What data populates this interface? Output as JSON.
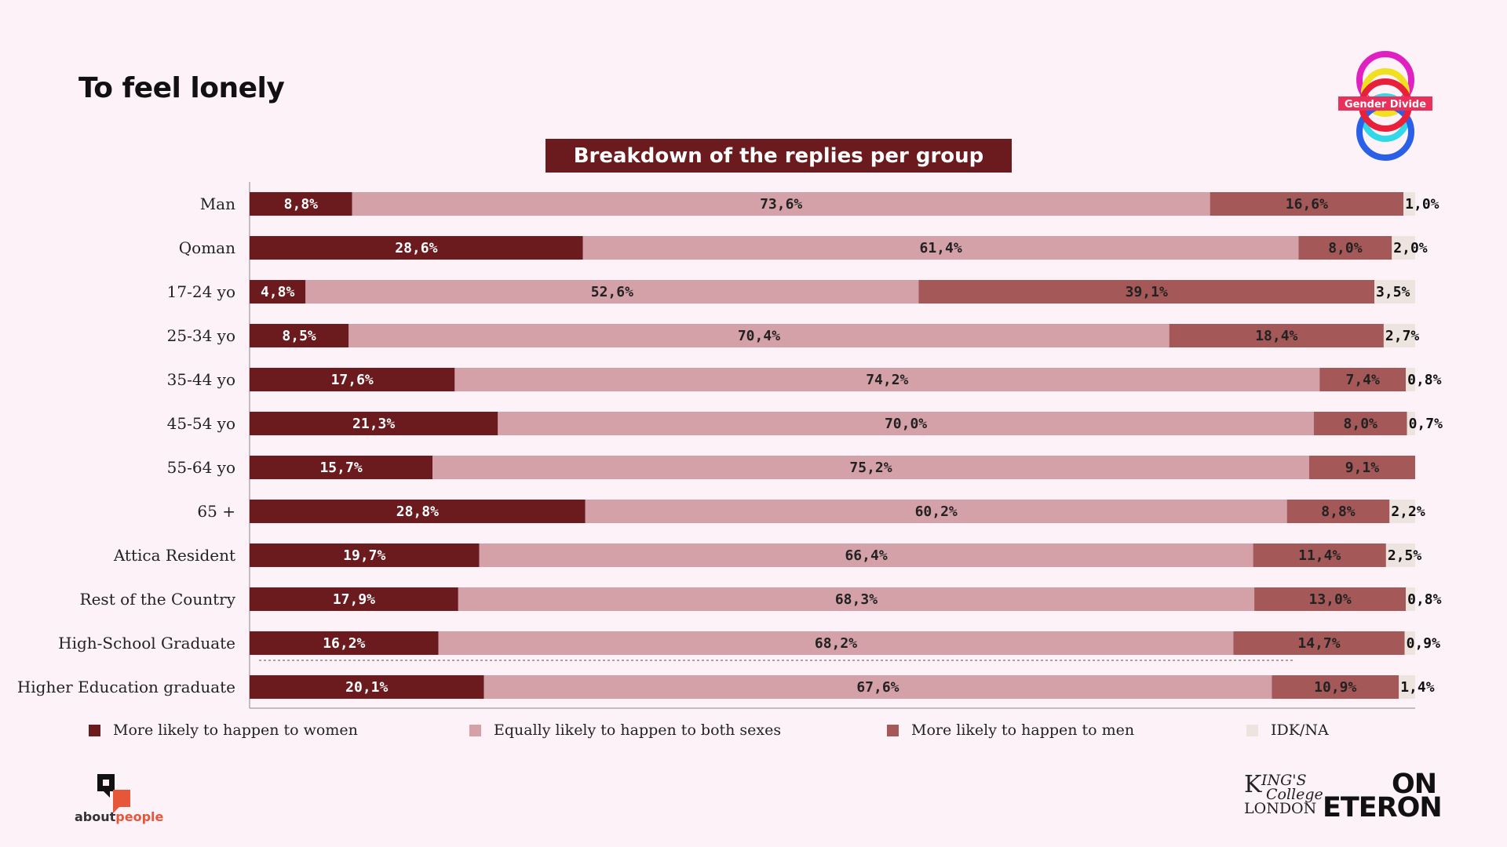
{
  "page_title": "To feel lonely",
  "chart_title": "Breakdown of the replies per group",
  "colors": {
    "women": "#6b1a1e",
    "equal": "#d4a1a9",
    "men": "#a45858",
    "idk": "#ede4df",
    "background": "#fcf2f8"
  },
  "chart_data": {
    "type": "bar",
    "orientation": "horizontal",
    "stacked": true,
    "categories": [
      "Man",
      "Qoman",
      "17-24 yo",
      "25-34 yo",
      "35-44 yo",
      "45-54 yo",
      "55-64 yo",
      "65 +",
      "Attica Resident",
      "Rest of the Country",
      "High-School Graduate",
      "Higher Education graduate"
    ],
    "series": [
      {
        "name": "More likely to happen to women",
        "key": "women",
        "values": [
          8.8,
          28.6,
          4.8,
          8.5,
          17.6,
          21.3,
          15.7,
          28.8,
          19.7,
          17.9,
          16.2,
          20.1
        ],
        "labels": [
          "8,8%",
          "28,6%",
          "4,8%",
          "8,5%",
          "17,6%",
          "21,3%",
          "15,7%",
          "28,8%",
          "19,7%",
          "17,9%",
          "16,2%",
          "20,1%"
        ]
      },
      {
        "name": "Equally likely to happen to both sexes",
        "key": "equal",
        "values": [
          73.6,
          61.4,
          52.6,
          70.4,
          74.2,
          70.0,
          75.2,
          60.2,
          66.4,
          68.3,
          68.2,
          67.6
        ],
        "labels": [
          "73,6%",
          "61,4%",
          "52,6%",
          "70,4%",
          "74,2%",
          "70,0%",
          "75,2%",
          "60,2%",
          "66,4%",
          "68,3%",
          "68,2%",
          "67,6%"
        ]
      },
      {
        "name": "More likely to happen to men",
        "key": "men",
        "values": [
          16.6,
          8.0,
          39.1,
          18.4,
          7.4,
          8.0,
          9.1,
          8.8,
          11.4,
          13.0,
          14.7,
          10.9
        ],
        "labels": [
          "16,6%",
          "8,0%",
          "39,1%",
          "18,4%",
          "7,4%",
          "8,0%",
          "9,1%",
          "8,8%",
          "11,4%",
          "13,0%",
          "14,7%",
          "10,9%"
        ]
      },
      {
        "name": "IDK/NA",
        "key": "idk",
        "values": [
          1.0,
          2.0,
          3.5,
          2.7,
          0.8,
          0.7,
          0,
          2.2,
          2.5,
          0.8,
          0.9,
          1.4
        ],
        "labels": [
          "1,0%",
          "2,0%",
          "3,5%",
          "2,7%",
          "0,8%",
          "0,7%",
          "",
          "2,2%",
          "2,5%",
          "0,8%",
          "0,9%",
          "1,4%"
        ]
      }
    ],
    "xlim": [
      0,
      100
    ],
    "legend_position": "bottom",
    "grid": false
  },
  "legend": [
    {
      "label": "More likely to happen to women",
      "key": "women"
    },
    {
      "label": "Equally likely to happen to both sexes",
      "key": "equal"
    },
    {
      "label": "More likely to happen to men",
      "key": "men"
    },
    {
      "label": "IDK/NA",
      "key": "idk"
    }
  ],
  "logos": {
    "gender_divide": "Gender Divide",
    "aboutpeople_prefix": "about",
    "aboutpeople_suffix": "people",
    "kings_k": "K",
    "kings_ings": "ING'S",
    "kings_college": "College",
    "kings_london": "LONDON",
    "eteron_line1": "ON",
    "eteron_line2": "ETERON"
  }
}
